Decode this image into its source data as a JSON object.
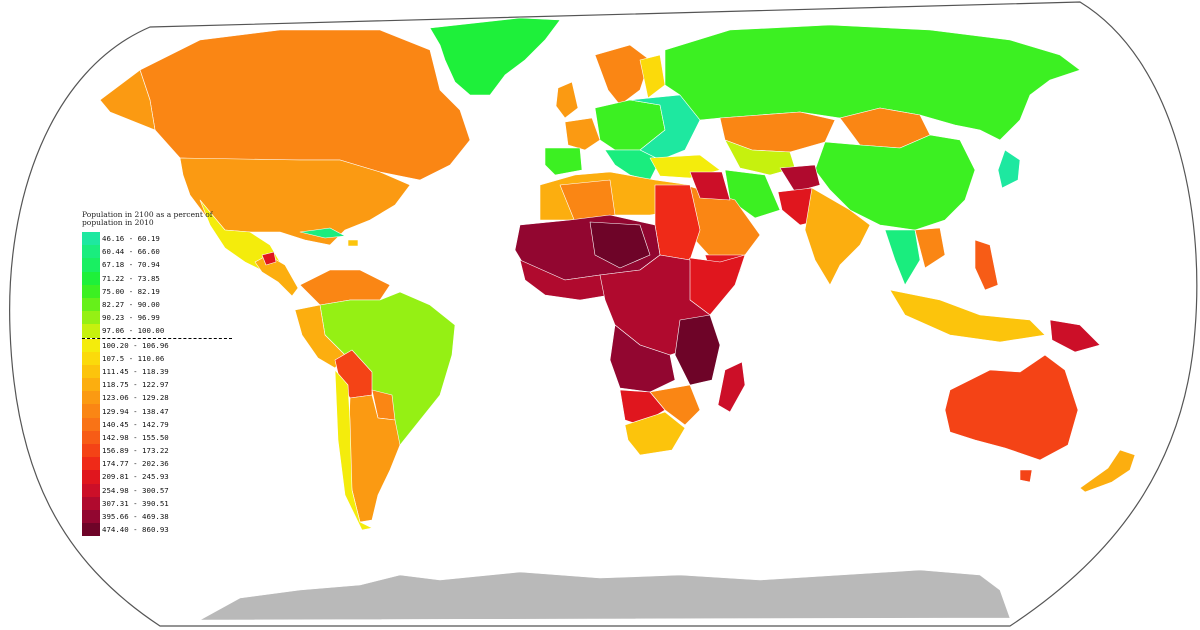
{
  "legend": {
    "title": "Population in 2100 as a percent of population in 2010",
    "items": [
      {
        "range": "46.16 - 60.19",
        "color": "#1ee8a0"
      },
      {
        "range": "60.44 - 66.60",
        "color": "#1aed7e"
      },
      {
        "range": "67.18 - 70.94",
        "color": "#19ef62"
      },
      {
        "range": "71.22 - 73.85",
        "color": "#1ef03a"
      },
      {
        "range": "75.00 - 82.19",
        "color": "#3cf022"
      },
      {
        "range": "82.27 - 90.00",
        "color": "#66f01a"
      },
      {
        "range": "90.23 - 96.99",
        "color": "#95f014"
      },
      {
        "range": "97.06 - 100.00",
        "color": "#c6f10e"
      },
      {
        "range": "100.20 - 106.96",
        "color": "#f4ec0c"
      },
      {
        "range": "107.5 - 110.06",
        "color": "#fbda0b"
      },
      {
        "range": "111.45 - 118.39",
        "color": "#fcc40c"
      },
      {
        "range": "118.75 - 122.97",
        "color": "#fcae0f"
      },
      {
        "range": "123.06 - 129.28",
        "color": "#fb9a12"
      },
      {
        "range": "129.94 - 138.47",
        "color": "#fa8614"
      },
      {
        "range": "140.45 - 142.79",
        "color": "#f97316"
      },
      {
        "range": "142.98 - 155.50",
        "color": "#f75c16"
      },
      {
        "range": "156.89 - 173.22",
        "color": "#f44316"
      },
      {
        "range": "174.77 - 202.36",
        "color": "#ef2a18"
      },
      {
        "range": "209.81 - 245.93",
        "color": "#e0161e"
      },
      {
        "range": "254.98 - 300.57",
        "color": "#cc0f28"
      },
      {
        "range": "307.31 - 390.51",
        "color": "#b00a2e"
      },
      {
        "range": "395.66 - 469.38",
        "color": "#920630"
      },
      {
        "range": "474.40 - 860.93",
        "color": "#6e0428"
      }
    ],
    "separator_after_index": 7
  },
  "colors": {
    "ocean": "#ffffff",
    "frame": "#555555",
    "no_data": "#b9b9b9",
    "borders": "#ffffff"
  }
}
